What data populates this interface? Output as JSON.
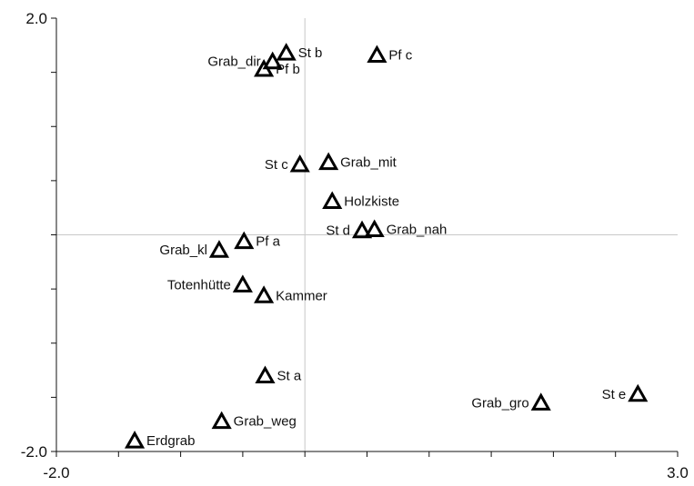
{
  "chart_data": {
    "type": "scatter",
    "title": "",
    "xlabel": "",
    "ylabel": "",
    "xlim": [
      -2.0,
      3.0
    ],
    "ylim": [
      -2.0,
      2.0
    ],
    "x_tick_labels": [
      "-2.0",
      "3.0"
    ],
    "y_tick_labels": [
      "2.0",
      "-2.0"
    ],
    "reference_lines": {
      "x": 0,
      "y": 0
    },
    "marker": "open-triangle",
    "points": [
      {
        "label": "St b",
        "x": -0.15,
        "y": 1.68,
        "label_side": "right"
      },
      {
        "label": "Grab_dir",
        "x": -0.26,
        "y": 1.6,
        "label_side": "left"
      },
      {
        "label": "Pf b",
        "x": -0.33,
        "y": 1.53,
        "label_side": "right"
      },
      {
        "label": "Pf c",
        "x": 0.58,
        "y": 1.66,
        "label_side": "right"
      },
      {
        "label": "St c",
        "x": -0.04,
        "y": 0.65,
        "label_side": "left"
      },
      {
        "label": "Grab_mit",
        "x": 0.19,
        "y": 0.67,
        "label_side": "right"
      },
      {
        "label": "Holzkiste",
        "x": 0.22,
        "y": 0.31,
        "label_side": "right"
      },
      {
        "label": "St d",
        "x": 0.46,
        "y": 0.04,
        "label_side": "left"
      },
      {
        "label": "Grab_nah",
        "x": 0.56,
        "y": 0.05,
        "label_side": "right"
      },
      {
        "label": "Pf  a",
        "x": -0.49,
        "y": -0.06,
        "label_side": "right"
      },
      {
        "label": "Grab_kl",
        "x": -0.69,
        "y": -0.14,
        "label_side": "left"
      },
      {
        "label": "Totenhütte",
        "x": -0.5,
        "y": -0.46,
        "label_side": "left"
      },
      {
        "label": "Kammer",
        "x": -0.33,
        "y": -0.56,
        "label_side": "right"
      },
      {
        "label": "St a",
        "x": -0.32,
        "y": -1.3,
        "label_side": "right"
      },
      {
        "label": "Grab_weg",
        "x": -0.67,
        "y": -1.72,
        "label_side": "right"
      },
      {
        "label": "Erdgrab",
        "x": -1.37,
        "y": -1.9,
        "label_side": "right"
      },
      {
        "label": "Grab_gro",
        "x": 1.9,
        "y": -1.55,
        "label_side": "left"
      },
      {
        "label": "St e",
        "x": 2.68,
        "y": -1.47,
        "label_side": "left"
      }
    ]
  }
}
